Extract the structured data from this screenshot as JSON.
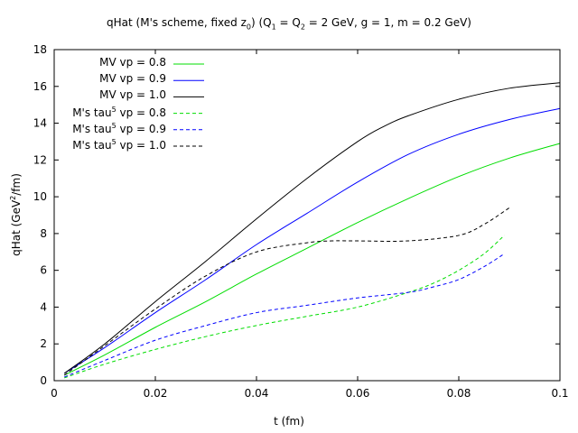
{
  "chart_data": {
    "type": "line",
    "title": "qHat (M's scheme, fixed z0) (Q1 = Q2 = 2 GeV, g = 1, m = 0.2 GeV)",
    "title_parts": {
      "pre": "qHat (M's scheme, fixed z",
      "sub1": "0",
      "mid1": ") (Q",
      "sub2": "1",
      "mid2": " = Q",
      "sub3": "2",
      "post": " = 2 GeV, g = 1, m = 0.2 GeV)"
    },
    "xlabel": "t (fm)",
    "ylabel": "qHat (GeV2/fm)",
    "ylabel_parts": {
      "pre": "qHat (GeV",
      "sup": "2",
      "post": "/fm)"
    },
    "xlim": [
      0,
      0.1
    ],
    "ylim": [
      0,
      18
    ],
    "xticks": [
      0,
      0.02,
      0.04,
      0.06,
      0.08,
      0.1
    ],
    "xtick_labels": [
      "0",
      "0.02",
      "0.04",
      "0.06",
      "0.08",
      "0.1"
    ],
    "yticks": [
      0,
      2,
      4,
      6,
      8,
      10,
      12,
      14,
      16,
      18
    ],
    "ytick_labels": [
      "0",
      "2",
      "4",
      "6",
      "8",
      "10",
      "12",
      "14",
      "16",
      "18"
    ],
    "legend_position": "top-left",
    "series": [
      {
        "name": "MV vp = 0.8",
        "label_pre": "MV vp = 0.8",
        "label_sup": "",
        "label_post": "",
        "color": "#00dd00",
        "dash": "solid",
        "x": [
          0.002,
          0.01,
          0.02,
          0.03,
          0.04,
          0.05,
          0.06,
          0.07,
          0.08,
          0.09,
          0.1
        ],
        "y": [
          0.3,
          1.4,
          2.9,
          4.3,
          5.8,
          7.2,
          8.6,
          9.9,
          11.1,
          12.1,
          12.9
        ]
      },
      {
        "name": "MV vp = 0.9",
        "label_pre": "MV vp = 0.9",
        "label_sup": "",
        "label_post": "",
        "color": "#0000ff",
        "dash": "solid",
        "x": [
          0.002,
          0.01,
          0.02,
          0.03,
          0.04,
          0.05,
          0.06,
          0.07,
          0.08,
          0.09,
          0.1
        ],
        "y": [
          0.4,
          1.8,
          3.7,
          5.5,
          7.4,
          9.1,
          10.8,
          12.3,
          13.4,
          14.2,
          14.8
        ]
      },
      {
        "name": "MV vp = 1.0",
        "label_pre": "MV vp = 1.0",
        "label_sup": "",
        "label_post": "",
        "color": "#000000",
        "dash": "solid",
        "x": [
          0.002,
          0.01,
          0.02,
          0.03,
          0.04,
          0.05,
          0.06,
          0.065,
          0.07,
          0.08,
          0.09,
          0.1
        ],
        "y": [
          0.4,
          2.0,
          4.3,
          6.5,
          8.8,
          11.0,
          13.0,
          13.8,
          14.4,
          15.3,
          15.9,
          16.2
        ]
      },
      {
        "name": "M's tau5 vp = 0.8",
        "label_pre": "M's tau",
        "label_sup": "5",
        "label_post": " vp = 0.8",
        "color": "#00dd00",
        "dash": "dashed",
        "x": [
          0.002,
          0.01,
          0.02,
          0.03,
          0.04,
          0.05,
          0.06,
          0.07,
          0.075,
          0.08,
          0.085,
          0.089
        ],
        "y": [
          0.15,
          0.9,
          1.7,
          2.4,
          3.0,
          3.5,
          4.0,
          4.8,
          5.3,
          6.0,
          6.9,
          7.9
        ]
      },
      {
        "name": "M's tau5 vp = 0.9",
        "label_pre": "M's tau",
        "label_sup": "5",
        "label_post": " vp = 0.9",
        "color": "#0000ff",
        "dash": "dashed",
        "x": [
          0.002,
          0.01,
          0.02,
          0.03,
          0.04,
          0.05,
          0.06,
          0.07,
          0.075,
          0.08,
          0.085,
          0.089
        ],
        "y": [
          0.2,
          1.1,
          2.2,
          3.0,
          3.7,
          4.1,
          4.5,
          4.8,
          5.1,
          5.5,
          6.2,
          6.9
        ]
      },
      {
        "name": "M's tau5 vp = 1.0",
        "label_pre": "M's tau",
        "label_sup": "5",
        "label_post": " vp = 1.0",
        "color": "#000000",
        "dash": "dashed",
        "x": [
          0.002,
          0.01,
          0.02,
          0.03,
          0.04,
          0.05,
          0.055,
          0.06,
          0.07,
          0.08,
          0.085,
          0.09
        ],
        "y": [
          0.3,
          1.9,
          3.9,
          5.7,
          7.0,
          7.5,
          7.6,
          7.6,
          7.6,
          7.9,
          8.5,
          9.4
        ]
      }
    ]
  }
}
